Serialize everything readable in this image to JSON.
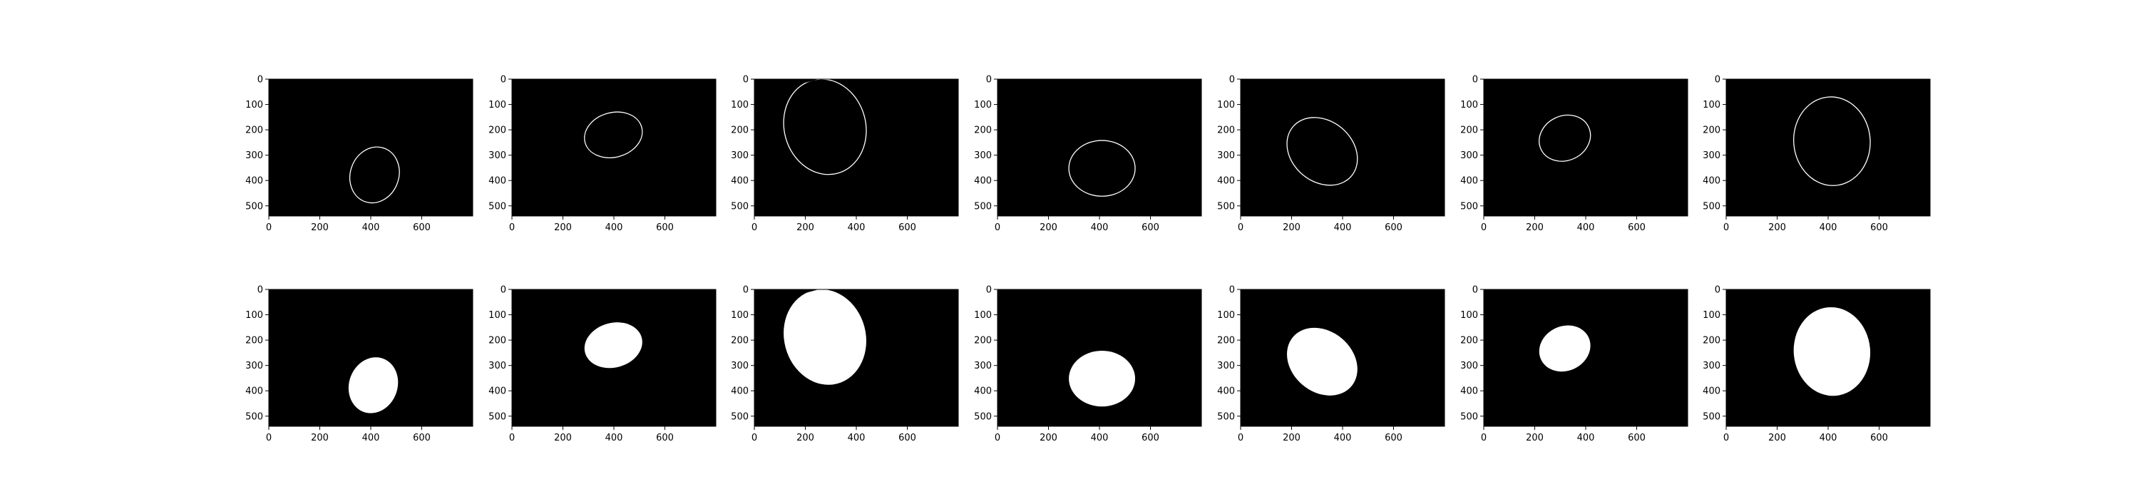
{
  "figure": {
    "background": "#ffffff",
    "plot_background": "#000000",
    "mark_color": "#ffffff"
  },
  "chart_data": [
    {
      "type": "image",
      "row": 1,
      "col": 1,
      "shape": "ellipse",
      "style": "outline",
      "center": [
        415,
        378
      ],
      "radii": [
        95,
        112
      ],
      "rotation_deg": 20,
      "xticks": [
        0,
        200,
        400,
        600
      ],
      "yticks": [
        0,
        100,
        200,
        300,
        400,
        500
      ],
      "xlim": [
        0,
        800
      ],
      "ylim": [
        540,
        0
      ]
    },
    {
      "type": "image",
      "row": 1,
      "col": 2,
      "shape": "ellipse",
      "style": "outline",
      "center": [
        398,
        220
      ],
      "radii": [
        115,
        88
      ],
      "rotation_deg": -15,
      "xticks": [
        0,
        200,
        400,
        600
      ],
      "yticks": [
        0,
        100,
        200,
        300,
        400,
        500
      ],
      "xlim": [
        0,
        800
      ],
      "ylim": [
        540,
        0
      ]
    },
    {
      "type": "image",
      "row": 1,
      "col": 3,
      "shape": "ellipse",
      "style": "outline",
      "center": [
        277,
        188
      ],
      "radii": [
        160,
        190
      ],
      "rotation_deg": -15,
      "xticks": [
        0,
        200,
        400,
        600
      ],
      "yticks": [
        0,
        100,
        200,
        300,
        400,
        500
      ],
      "xlim": [
        0,
        800
      ],
      "ylim": [
        540,
        0
      ]
    },
    {
      "type": "image",
      "row": 1,
      "col": 4,
      "shape": "ellipse",
      "style": "outline",
      "center": [
        410,
        352
      ],
      "radii": [
        130,
        110
      ],
      "rotation_deg": 0,
      "xticks": [
        0,
        200,
        400,
        600
      ],
      "yticks": [
        0,
        100,
        200,
        300,
        400,
        500
      ],
      "xlim": [
        0,
        800
      ],
      "ylim": [
        540,
        0
      ]
    },
    {
      "type": "image",
      "row": 1,
      "col": 5,
      "shape": "ellipse",
      "style": "outline",
      "center": [
        320,
        285
      ],
      "radii": [
        150,
        120
      ],
      "rotation_deg": 40,
      "xticks": [
        0,
        200,
        400,
        600
      ],
      "yticks": [
        0,
        100,
        200,
        300,
        400,
        500
      ],
      "xlim": [
        0,
        800
      ],
      "ylim": [
        540,
        0
      ]
    },
    {
      "type": "image",
      "row": 1,
      "col": 6,
      "shape": "ellipse",
      "style": "outline",
      "center": [
        318,
        233
      ],
      "radii": [
        103,
        88
      ],
      "rotation_deg": -25,
      "xticks": [
        0,
        200,
        400,
        600
      ],
      "yticks": [
        0,
        100,
        200,
        300,
        400,
        500
      ],
      "xlim": [
        0,
        800
      ],
      "ylim": [
        540,
        0
      ]
    },
    {
      "type": "image",
      "row": 1,
      "col": 7,
      "shape": "ellipse",
      "style": "outline",
      "center": [
        415,
        245
      ],
      "radii": [
        150,
        175
      ],
      "rotation_deg": -5,
      "xticks": [
        0,
        200,
        400,
        600
      ],
      "yticks": [
        0,
        100,
        200,
        300,
        400,
        500
      ],
      "xlim": [
        0,
        800
      ],
      "ylim": [
        540,
        0
      ]
    },
    {
      "type": "image",
      "row": 2,
      "col": 1,
      "shape": "ellipse",
      "style": "filled",
      "center": [
        410,
        378
      ],
      "radii": [
        95,
        112
      ],
      "rotation_deg": 20,
      "xticks": [
        0,
        200,
        400,
        600
      ],
      "yticks": [
        0,
        100,
        200,
        300,
        400,
        500
      ],
      "xlim": [
        0,
        800
      ],
      "ylim": [
        540,
        0
      ]
    },
    {
      "type": "image",
      "row": 2,
      "col": 2,
      "shape": "ellipse",
      "style": "filled",
      "center": [
        398,
        220
      ],
      "radii": [
        115,
        88
      ],
      "rotation_deg": -15,
      "xticks": [
        0,
        200,
        400,
        600
      ],
      "yticks": [
        0,
        100,
        200,
        300,
        400,
        500
      ],
      "xlim": [
        0,
        800
      ],
      "ylim": [
        540,
        0
      ]
    },
    {
      "type": "image",
      "row": 2,
      "col": 3,
      "shape": "ellipse",
      "style": "filled",
      "center": [
        277,
        188
      ],
      "radii": [
        160,
        190
      ],
      "rotation_deg": -15,
      "xticks": [
        0,
        200,
        400,
        600
      ],
      "yticks": [
        0,
        100,
        200,
        300,
        400,
        500
      ],
      "xlim": [
        0,
        800
      ],
      "ylim": [
        540,
        0
      ]
    },
    {
      "type": "image",
      "row": 2,
      "col": 4,
      "shape": "ellipse",
      "style": "filled",
      "center": [
        410,
        352
      ],
      "radii": [
        130,
        110
      ],
      "rotation_deg": 0,
      "xticks": [
        0,
        200,
        400,
        600
      ],
      "yticks": [
        0,
        100,
        200,
        300,
        400,
        500
      ],
      "xlim": [
        0,
        800
      ],
      "ylim": [
        540,
        0
      ]
    },
    {
      "type": "image",
      "row": 2,
      "col": 5,
      "shape": "ellipse",
      "style": "filled",
      "center": [
        320,
        285
      ],
      "radii": [
        150,
        120
      ],
      "rotation_deg": 40,
      "xticks": [
        0,
        200,
        400,
        600
      ],
      "yticks": [
        0,
        100,
        200,
        300,
        400,
        500
      ],
      "xlim": [
        0,
        800
      ],
      "ylim": [
        540,
        0
      ]
    },
    {
      "type": "image",
      "row": 2,
      "col": 6,
      "shape": "ellipse",
      "style": "filled",
      "center": [
        318,
        233
      ],
      "radii": [
        103,
        88
      ],
      "rotation_deg": -25,
      "xticks": [
        0,
        200,
        400,
        600
      ],
      "yticks": [
        0,
        100,
        200,
        300,
        400,
        500
      ],
      "xlim": [
        0,
        800
      ],
      "ylim": [
        540,
        0
      ]
    },
    {
      "type": "image",
      "row": 2,
      "col": 7,
      "shape": "ellipse",
      "style": "filled",
      "center": [
        415,
        245
      ],
      "radii": [
        150,
        175
      ],
      "rotation_deg": -5,
      "xticks": [
        0,
        200,
        400,
        600
      ],
      "yticks": [
        0,
        100,
        200,
        300,
        400,
        500
      ],
      "xlim": [
        0,
        800
      ],
      "ylim": [
        540,
        0
      ]
    }
  ]
}
